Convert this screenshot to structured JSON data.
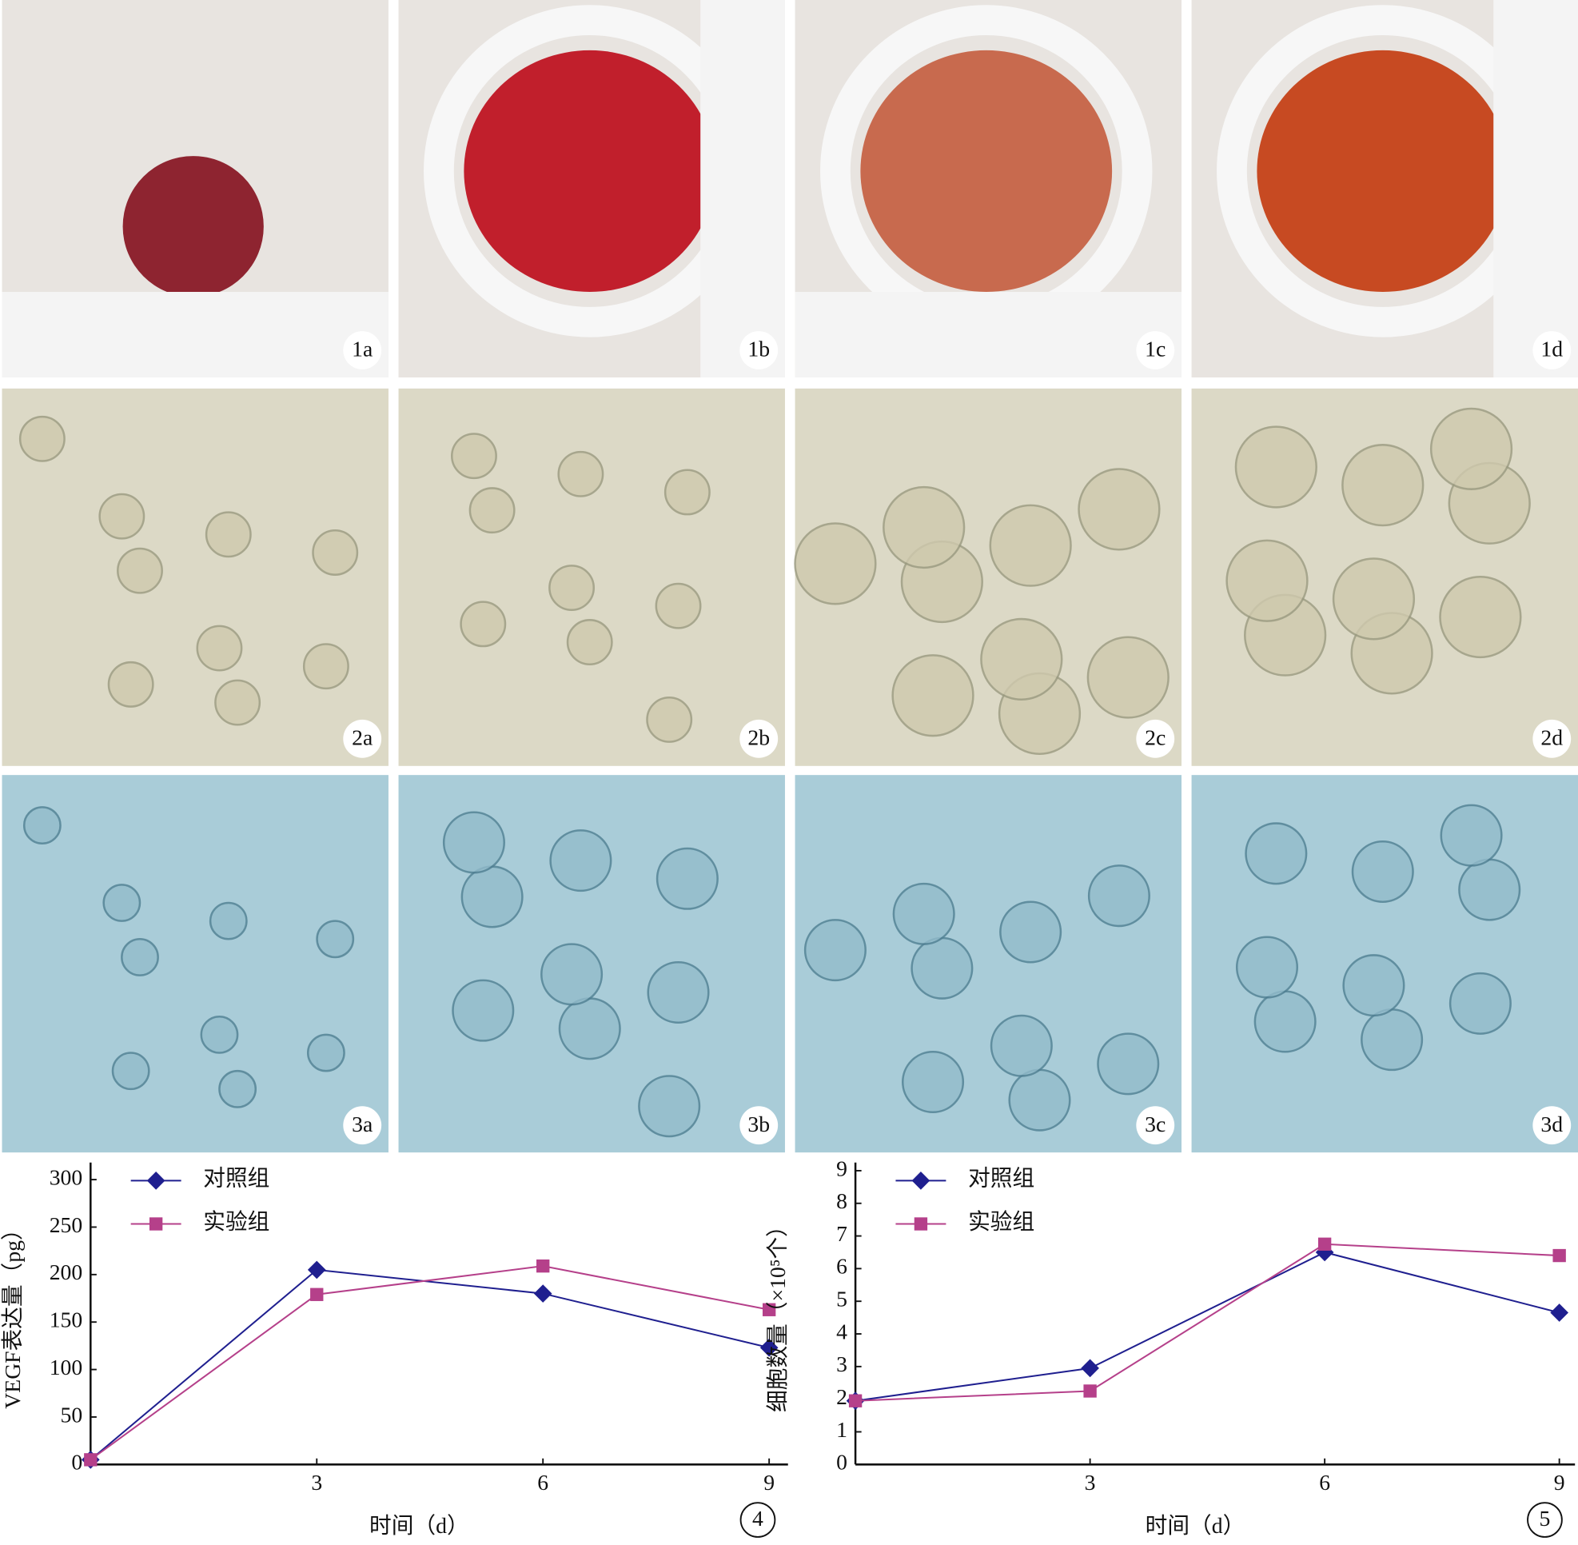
{
  "panels": [
    "1a",
    "1b",
    "1c",
    "1d",
    "2a",
    "2b",
    "2c",
    "2d",
    "3a",
    "3b",
    "3c",
    "3d"
  ],
  "chart_data": [
    {
      "type": "line",
      "figure_label": "4",
      "xlabel": "时间（d）",
      "ylabel": "VEGF表达量（pg）",
      "x": [
        0,
        3,
        6,
        9
      ],
      "xlim": [
        0,
        9.25
      ],
      "xticks": [
        3,
        6,
        9
      ],
      "ylim": [
        0,
        318
      ],
      "yticks": [
        0,
        50,
        100,
        150,
        200,
        250,
        300
      ],
      "legend": "upper left",
      "series": [
        {
          "name": "对照组",
          "color": "#1f1f8f",
          "marker": "diamond",
          "values": [
            5,
            205,
            180,
            123
          ]
        },
        {
          "name": "实验组",
          "color": "#b5408a",
          "marker": "square",
          "values": [
            5,
            179,
            209,
            163
          ]
        }
      ]
    },
    {
      "type": "line",
      "figure_label": "5",
      "xlabel": "时间（d）",
      "ylabel": "细胞数量（×10⁵个）",
      "x": [
        0,
        3,
        6,
        9
      ],
      "xlim": [
        0,
        9.2
      ],
      "xticks": [
        3,
        6,
        9
      ],
      "ylim": [
        0,
        9.25
      ],
      "yticks": [
        0,
        1,
        2,
        3,
        4,
        5,
        6,
        7,
        8,
        9
      ],
      "legend": "upper left",
      "series": [
        {
          "name": "对照组",
          "color": "#1f1f8f",
          "marker": "diamond",
          "values": [
            1.95,
            2.95,
            6.5,
            4.65
          ]
        },
        {
          "name": "实验组",
          "color": "#b5408a",
          "marker": "square",
          "values": [
            1.95,
            2.25,
            6.75,
            6.4
          ]
        }
      ]
    }
  ]
}
